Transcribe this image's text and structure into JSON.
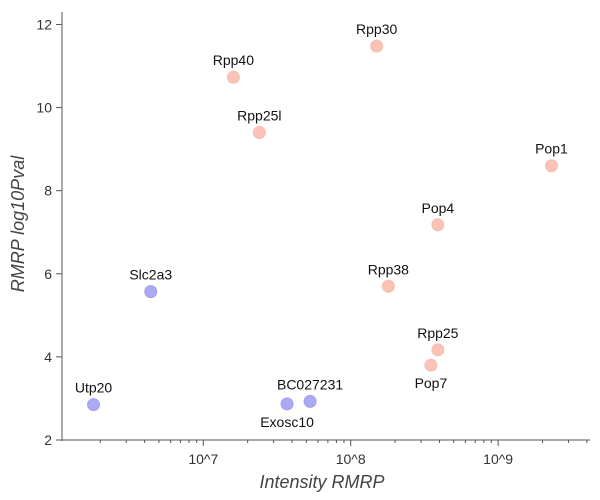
{
  "chart_data": {
    "type": "scatter",
    "title": "",
    "xlabel": "Intensity RMRP",
    "ylabel": "RMRP log10Pval",
    "xscale": "log",
    "xlim": [
      1100000.0,
      4200000000.0
    ],
    "ylim": [
      2,
      12.3
    ],
    "x_major_ticks": [
      10000000.0,
      100000000.0,
      1000000000.0
    ],
    "x_tick_labels": [
      "10^7",
      "10^8",
      "10^9"
    ],
    "y_ticks": [
      2,
      4,
      6,
      8,
      10,
      12
    ],
    "y_tick_labels": [
      "2",
      "4",
      "6",
      "8",
      "10",
      "12"
    ],
    "grid": false,
    "colors": {
      "high": "#f9b8a8",
      "low": "#9b9bf0"
    },
    "points": [
      {
        "label": "Rpp30",
        "x": 150000000,
        "y": 11.48,
        "group": "high",
        "label_pos": "above"
      },
      {
        "label": "Rpp40",
        "x": 16000000,
        "y": 10.73,
        "group": "high",
        "label_pos": "above"
      },
      {
        "label": "Rpp25l",
        "x": 24000000,
        "y": 9.4,
        "group": "high",
        "label_pos": "above"
      },
      {
        "label": "Pop1",
        "x": 2300000000,
        "y": 8.6,
        "group": "high",
        "label_pos": "above"
      },
      {
        "label": "Pop4",
        "x": 390000000,
        "y": 7.18,
        "group": "high",
        "label_pos": "above"
      },
      {
        "label": "Rpp38",
        "x": 180000000,
        "y": 5.7,
        "group": "high",
        "label_pos": "above"
      },
      {
        "label": "Rpp25",
        "x": 390000000,
        "y": 4.17,
        "group": "high",
        "label_pos": "above"
      },
      {
        "label": "Pop7",
        "x": 350000000,
        "y": 3.8,
        "group": "high",
        "label_pos": "below"
      },
      {
        "label": "Slc2a3",
        "x": 4400000,
        "y": 5.57,
        "group": "low",
        "label_pos": "above"
      },
      {
        "label": "Utp20",
        "x": 1800000,
        "y": 2.85,
        "group": "low",
        "label_pos": "above"
      },
      {
        "label": "BC027231",
        "x": 53000000,
        "y": 2.93,
        "group": "low",
        "label_pos": "above"
      },
      {
        "label": "Exosc10",
        "x": 37000000,
        "y": 2.87,
        "group": "low",
        "label_pos": "below"
      }
    ]
  }
}
